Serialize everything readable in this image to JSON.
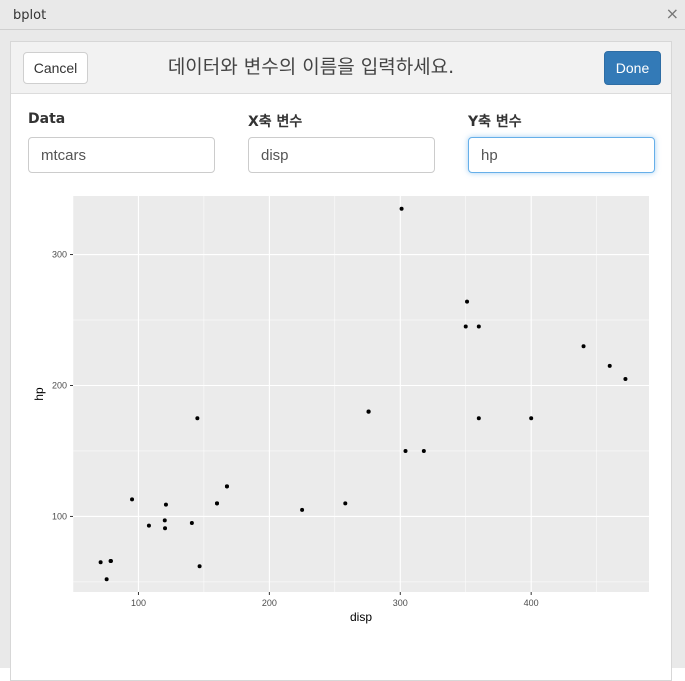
{
  "window": {
    "title": "bplot",
    "close_glyph": "×"
  },
  "header": {
    "cancel_label": "Cancel",
    "title": "데이터와 변수의 이름을 입력하세요.",
    "done_label": "Done"
  },
  "fields": {
    "data": {
      "label": "Data",
      "value": "mtcars"
    },
    "x": {
      "label": "X축 변수",
      "value": "disp"
    },
    "y": {
      "label": "Y축 변수",
      "value": "hp"
    }
  },
  "colors": {
    "accent": "#337ab7",
    "panel": "#ebebeb",
    "grid": "#ffffff"
  },
  "chart_data": {
    "type": "scatter",
    "xlabel": "disp",
    "ylabel": "hp",
    "xlim": [
      50,
      490
    ],
    "ylim": [
      42.3,
      344.7
    ],
    "x_ticks": [
      100,
      200,
      300,
      400
    ],
    "y_ticks": [
      100,
      200,
      300
    ],
    "grid": true,
    "points": [
      {
        "x": 160,
        "y": 110
      },
      {
        "x": 160,
        "y": 110
      },
      {
        "x": 108,
        "y": 93
      },
      {
        "x": 258,
        "y": 110
      },
      {
        "x": 360,
        "y": 175
      },
      {
        "x": 225,
        "y": 105
      },
      {
        "x": 360,
        "y": 245
      },
      {
        "x": 146.7,
        "y": 62
      },
      {
        "x": 140.8,
        "y": 95
      },
      {
        "x": 167.6,
        "y": 123
      },
      {
        "x": 167.6,
        "y": 123
      },
      {
        "x": 275.8,
        "y": 180
      },
      {
        "x": 275.8,
        "y": 180
      },
      {
        "x": 275.8,
        "y": 180
      },
      {
        "x": 472,
        "y": 205
      },
      {
        "x": 460,
        "y": 215
      },
      {
        "x": 440,
        "y": 230
      },
      {
        "x": 78.7,
        "y": 66
      },
      {
        "x": 75.7,
        "y": 52
      },
      {
        "x": 71.1,
        "y": 65
      },
      {
        "x": 120.1,
        "y": 97
      },
      {
        "x": 318,
        "y": 150
      },
      {
        "x": 304,
        "y": 150
      },
      {
        "x": 350,
        "y": 245
      },
      {
        "x": 400,
        "y": 175
      },
      {
        "x": 79,
        "y": 66
      },
      {
        "x": 120.3,
        "y": 91
      },
      {
        "x": 95.1,
        "y": 113
      },
      {
        "x": 351,
        "y": 264
      },
      {
        "x": 145,
        "y": 175
      },
      {
        "x": 301,
        "y": 335
      },
      {
        "x": 121,
        "y": 109
      }
    ]
  }
}
